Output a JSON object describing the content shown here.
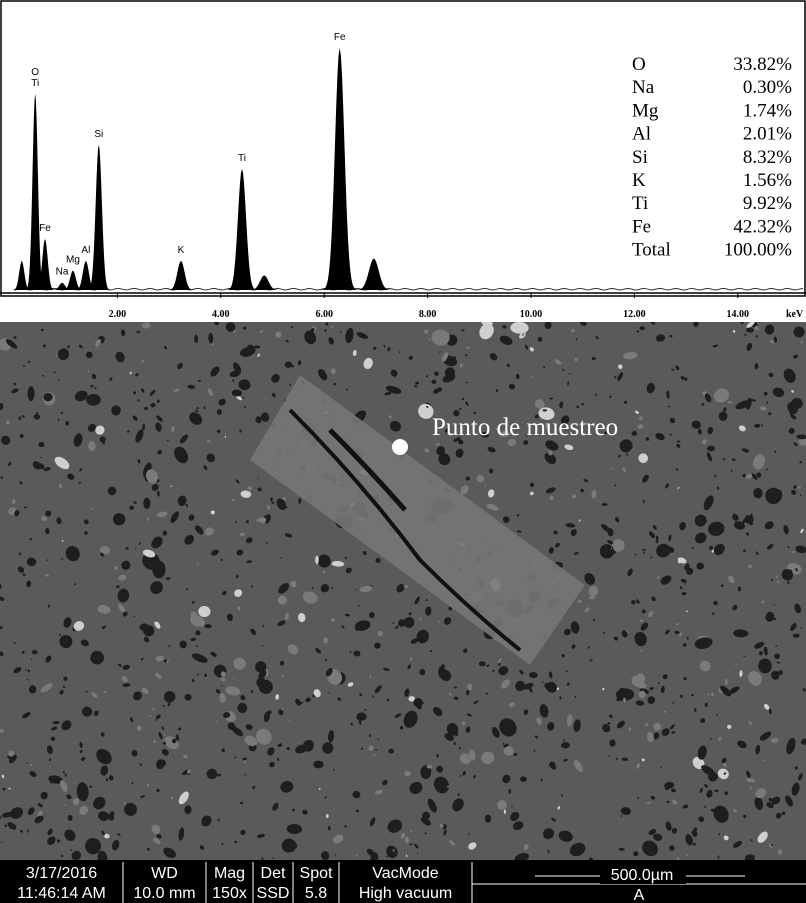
{
  "chart_data": {
    "type": "spectrum",
    "x_unit": "keV",
    "x": [
      0.15,
      0.41,
      0.6,
      0.93,
      1.14,
      1.39,
      1.64,
      3.23,
      4.41,
      4.84,
      6.3,
      6.96
    ],
    "values": [
      12,
      81,
      21,
      3,
      8,
      12,
      60,
      12,
      50,
      6,
      100,
      13
    ],
    "labels": [
      null,
      [
        "O",
        "Ti"
      ],
      [
        "Fe"
      ],
      [
        "Na"
      ],
      [
        "Mg"
      ],
      [
        "Al"
      ],
      [
        "Si"
      ],
      [
        "K"
      ],
      [
        "Ti"
      ],
      null,
      [
        "Fe"
      ],
      null
    ],
    "color": "#000000",
    "xlim": [
      0,
      15.3
    ],
    "ylim": [
      0,
      100
    ],
    "xticks": [
      {
        "value": 2,
        "label": "2.00"
      },
      {
        "value": 4,
        "label": "4.00"
      },
      {
        "value": 6,
        "label": "6.00"
      },
      {
        "value": 8,
        "label": "8.00"
      },
      {
        "value": 10,
        "label": "10.00"
      },
      {
        "value": 12,
        "label": "12.00"
      },
      {
        "value": 14,
        "label": "14.00"
      }
    ]
  },
  "composition": {
    "rows": [
      [
        "O",
        "33.82%"
      ],
      [
        "Na",
        "0.30%"
      ],
      [
        "Mg",
        "1.74%"
      ],
      [
        "Al",
        "2.01%"
      ],
      [
        "Si",
        "8.32%"
      ],
      [
        "K",
        "1.56%"
      ],
      [
        "Ti",
        "9.92%"
      ],
      [
        "Fe",
        "42.32%"
      ],
      [
        "Total",
        "100.00%"
      ]
    ]
  },
  "image": {
    "annotation": "Punto de muestreo"
  },
  "info_bar": {
    "columns": [
      [
        "3/17/2016",
        "11:46:14 AM"
      ],
      [
        "WD",
        "10.0 mm"
      ],
      [
        "Mag",
        "150x"
      ],
      [
        "Det",
        "SSD"
      ],
      [
        "Spot",
        "5.8"
      ],
      [
        "VacMode",
        "High vacuum"
      ]
    ],
    "scale": "500.0µm",
    "detector": "A"
  }
}
